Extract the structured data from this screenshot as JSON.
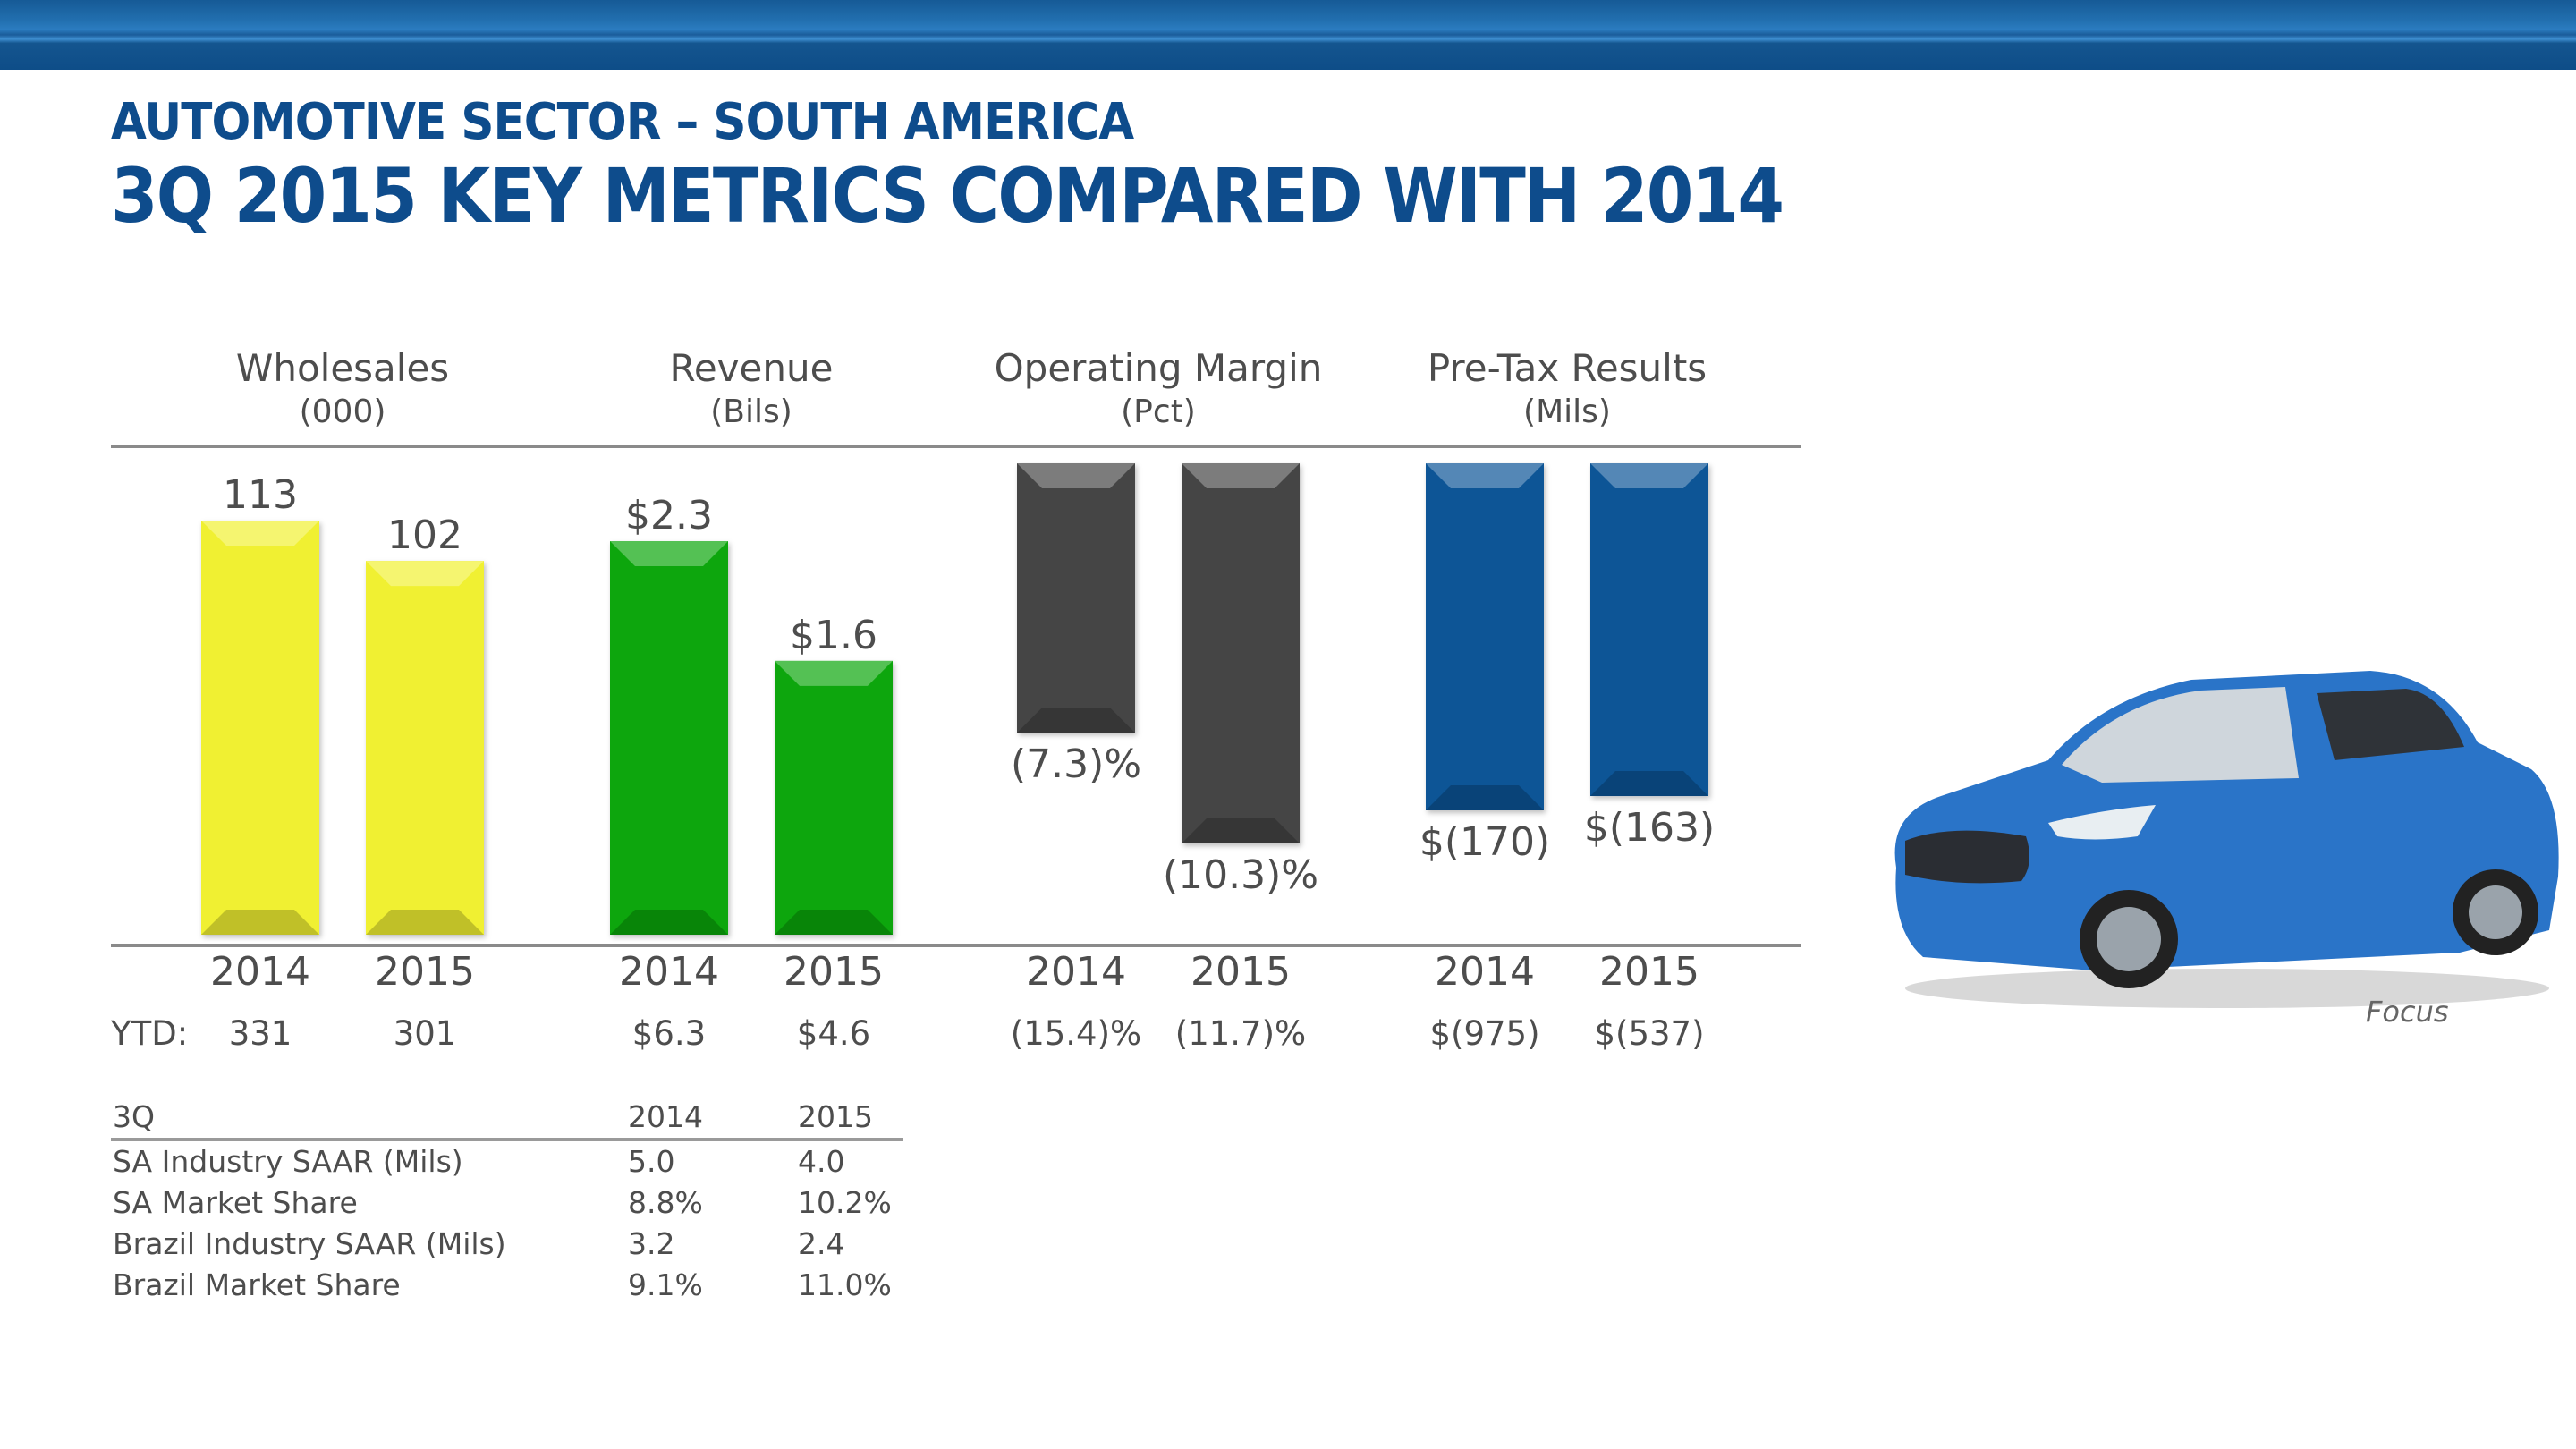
{
  "header": {
    "subtitle": "AUTOMOTIVE SECTOR – SOUTH AMERICA",
    "title": "3Q 2015 KEY METRICS COMPARED WITH 2014"
  },
  "chart_data": {
    "type": "bar",
    "title": "3Q 2015 Key Metrics Compared With 2014",
    "categories": [
      "2014",
      "2015"
    ],
    "groups": [
      {
        "name": "Wholesales",
        "unit": "(000)",
        "color": "#f0f032",
        "values": [
          113,
          102
        ],
        "labels": [
          "113",
          "102"
        ],
        "ytd_labels": [
          "331",
          "301"
        ],
        "direction": "up"
      },
      {
        "name": "Revenue",
        "unit": "(Bils)",
        "color": "#0aa60a",
        "values": [
          2.3,
          1.6
        ],
        "labels": [
          "$2.3",
          "$1.6"
        ],
        "ytd_labels": [
          "$6.3",
          "$4.6"
        ],
        "direction": "up"
      },
      {
        "name": "Operating Margin",
        "unit": "(Pct)",
        "color": "#444444",
        "values": [
          -7.3,
          -10.3
        ],
        "labels": [
          "(7.3)%",
          "(10.3)%"
        ],
        "ytd_labels": [
          "(15.4)%",
          "(11.7)%"
        ],
        "direction": "down"
      },
      {
        "name": "Pre-Tax Results",
        "unit": "(Mils)",
        "color": "#0b5496",
        "values": [
          -170,
          -163
        ],
        "labels": [
          "$(170)",
          "$(163)"
        ],
        "ytd_labels": [
          "$(975)",
          "$(537)"
        ],
        "direction": "down"
      }
    ],
    "ytd_label": "YTD:",
    "grid": false,
    "legend": "none"
  },
  "stats_table": {
    "headers": [
      "3Q",
      "2014",
      "2015"
    ],
    "rows": [
      [
        "SA Industry SAAR (Mils)",
        "5.0",
        "4.0"
      ],
      [
        "SA Market Share",
        "8.8%",
        "10.2%"
      ],
      [
        "Brazil Industry SAAR (Mils)",
        "3.2",
        "2.4"
      ],
      [
        "Brazil Market Share",
        "9.1%",
        "11.0%"
      ]
    ]
  },
  "image": {
    "caption": "Focus",
    "car_color": "#2a74c8"
  }
}
